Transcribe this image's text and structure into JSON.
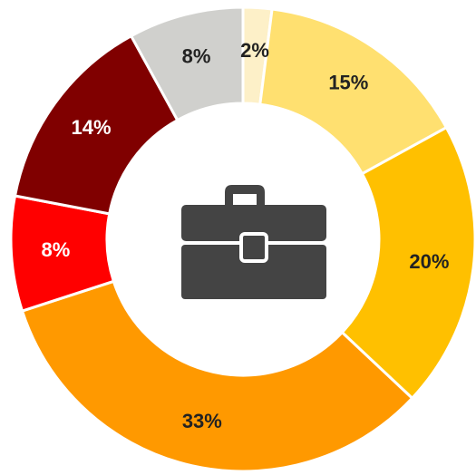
{
  "chart_data": {
    "type": "donut",
    "values": [
      2,
      15,
      20,
      33,
      8,
      14,
      8
    ],
    "value_labels": [
      "2%",
      "15%",
      "20%",
      "33%",
      "8%",
      "14%",
      "8%"
    ],
    "colors": [
      "#fdf0c8",
      "#ffe070",
      "#ffc000",
      "#ff9900",
      "#ff0000",
      "#800000",
      "#d0d0cd"
    ],
    "label_colors": [
      "#222222",
      "#222222",
      "#222222",
      "#222222",
      "#ffffff",
      "#ffffff",
      "#222222"
    ]
  }
}
